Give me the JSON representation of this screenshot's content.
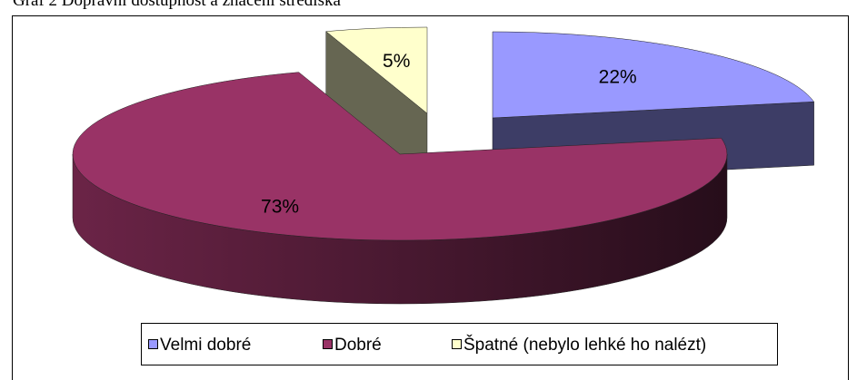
{
  "chart_data": {
    "type": "pie3d",
    "title": "Graf 2 Dopravní dostupnost a značení střediska",
    "categories": [
      "Velmi dobré",
      "Dobré",
      "Špatné (nebylo lehké ho nalézt)"
    ],
    "values": [
      22,
      73,
      5
    ],
    "value_labels": [
      "22%",
      "73%",
      "5%"
    ],
    "colors": [
      "#9999ff",
      "#993366",
      "#ffffcc"
    ],
    "legend": "bottom"
  }
}
